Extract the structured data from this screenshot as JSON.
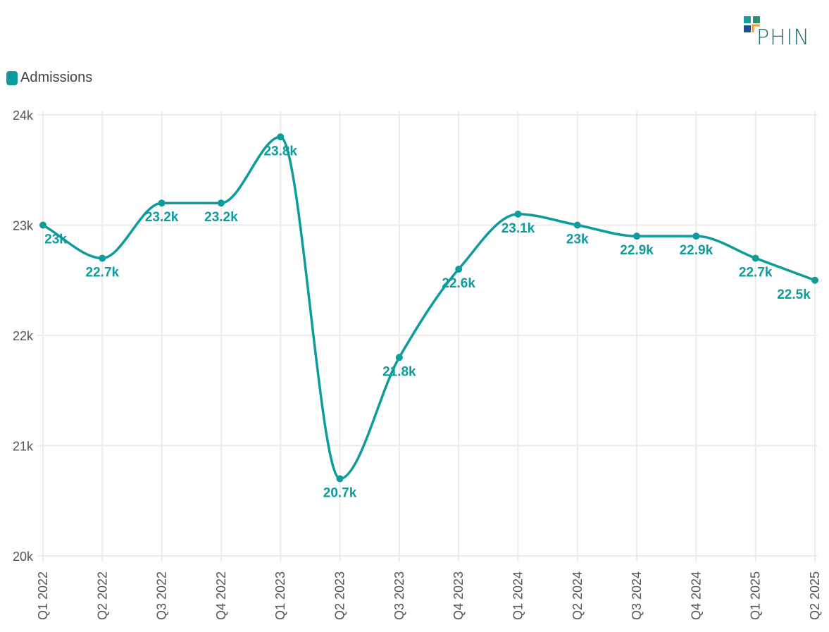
{
  "logo": {
    "text": "PHIN",
    "colors": [
      "#1a9d9d",
      "#2a8f73",
      "#1f4e8c",
      "#f39c32"
    ]
  },
  "legend": {
    "label": "Admissions",
    "color": "#0e9b9b"
  },
  "chart_data": {
    "type": "line",
    "categories": [
      "Q1 2022",
      "Q2 2022",
      "Q3 2022",
      "Q4 2022",
      "Q1 2023",
      "Q2 2023",
      "Q3 2023",
      "Q4 2023",
      "Q1 2024",
      "Q2 2024",
      "Q3 2024",
      "Q4 2024",
      "Q1 2025",
      "Q2 2025"
    ],
    "series": [
      {
        "name": "Admissions",
        "color": "#0e9b9b",
        "values": [
          23000,
          22700,
          23200,
          23200,
          23800,
          20700,
          21800,
          22600,
          23100,
          23000,
          22900,
          22900,
          22700,
          22500
        ],
        "labels": [
          "23k",
          "22.7k",
          "23.2k",
          "23.2k",
          "23.8k",
          "20.7k",
          "21.8k",
          "22.6k",
          "23.1k",
          "23k",
          "22.9k",
          "22.9k",
          "22.7k",
          "22.5k"
        ]
      }
    ],
    "ylim": [
      20000,
      24000
    ],
    "yticks": [
      {
        "v": 20000,
        "label": "20k"
      },
      {
        "v": 21000,
        "label": "21k"
      },
      {
        "v": 22000,
        "label": "22k"
      },
      {
        "v": 23000,
        "label": "23k"
      },
      {
        "v": 24000,
        "label": "24k"
      }
    ],
    "grid": true,
    "smooth": true,
    "legend_position": "top-left"
  }
}
